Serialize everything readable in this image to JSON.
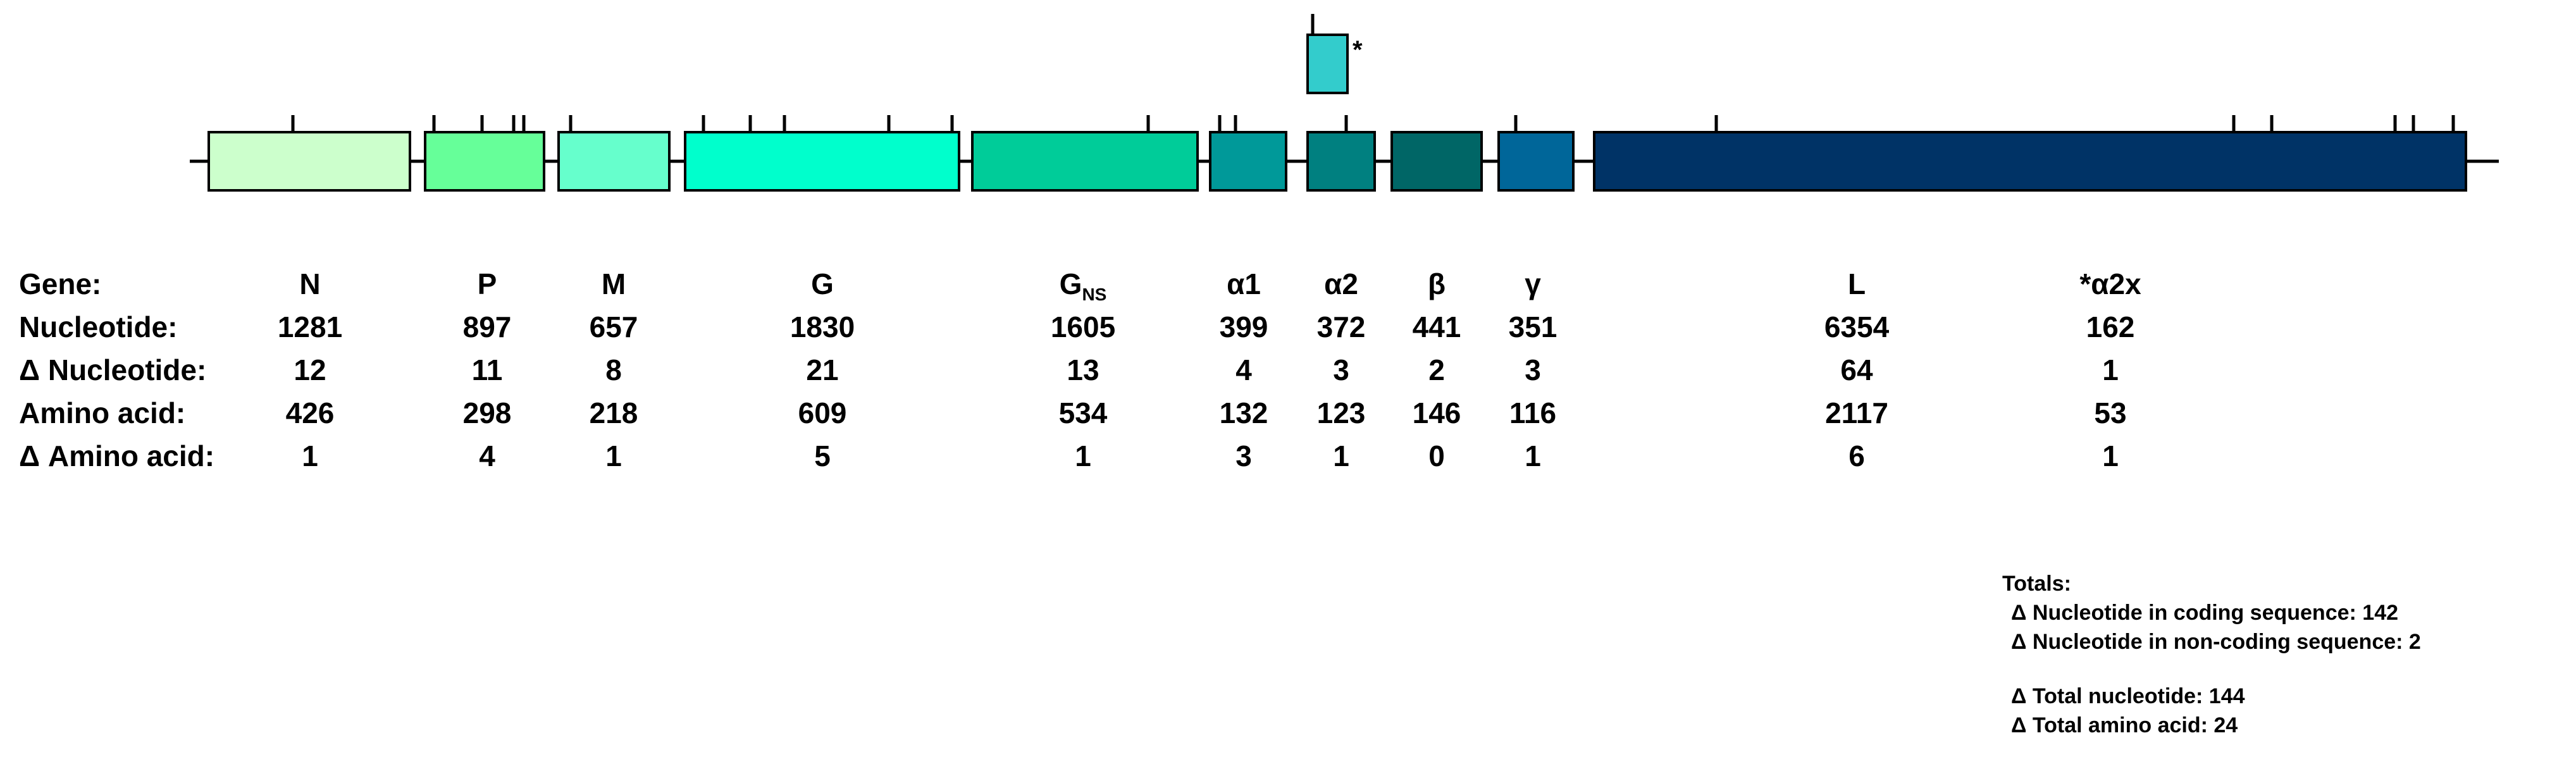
{
  "diagram": {
    "colors": {
      "N": "#ccffcc",
      "P": "#66ff99",
      "M": "#66ffcc",
      "G": "#00ffcc",
      "G_NS": "#00cc99",
      "alpha1": "#009999",
      "alpha2": "#008080",
      "beta": "#006666",
      "gamma": "#006699",
      "L": "#003366",
      "alpha2x": "#33cccc",
      "outline": "#000000"
    },
    "star_mark": "*"
  },
  "table": {
    "row_labels": [
      "Gene:",
      "Nucleotide:",
      "Δ Nucleotide:",
      "Amino acid:",
      "Δ Amino acid:"
    ],
    "genes": [
      {
        "gene": "N",
        "nucleotide": "1281",
        "d_nucleotide": "12",
        "amino_acid": "426",
        "d_amino_acid": "1"
      },
      {
        "gene": "P",
        "nucleotide": "897",
        "d_nucleotide": "11",
        "amino_acid": "298",
        "d_amino_acid": "4"
      },
      {
        "gene": "M",
        "nucleotide": "657",
        "d_nucleotide": "8",
        "amino_acid": "218",
        "d_amino_acid": "1"
      },
      {
        "gene": "G",
        "nucleotide": "1830",
        "d_nucleotide": "21",
        "amino_acid": "609",
        "d_amino_acid": "5"
      },
      {
        "gene": "G",
        "gene_sub": "NS",
        "nucleotide": "1605",
        "d_nucleotide": "13",
        "amino_acid": "534",
        "d_amino_acid": "1"
      },
      {
        "gene": "α1",
        "nucleotide": "399",
        "d_nucleotide": "4",
        "amino_acid": "132",
        "d_amino_acid": "3"
      },
      {
        "gene": "α2",
        "nucleotide": "372",
        "d_nucleotide": "3",
        "amino_acid": "123",
        "d_amino_acid": "1"
      },
      {
        "gene": "β",
        "nucleotide": "441",
        "d_nucleotide": "2",
        "amino_acid": "146",
        "d_amino_acid": "0"
      },
      {
        "gene": "γ",
        "nucleotide": "351",
        "d_nucleotide": "3",
        "amino_acid": "116",
        "d_amino_acid": "1"
      },
      {
        "gene": "L",
        "nucleotide": "6354",
        "d_nucleotide": "64",
        "amino_acid": "2117",
        "d_amino_acid": "6"
      },
      {
        "gene": "*α2x",
        "nucleotide": "162",
        "d_nucleotide": "1",
        "amino_acid": "53",
        "d_amino_acid": "1"
      }
    ]
  },
  "totals": {
    "heading": "Totals:",
    "coding": "Δ Nucleotide in coding sequence: 142",
    "noncoding": "Δ Nucleotide in non-coding sequence: 2",
    "total_nucleotide": "Δ Total nucleotide: 144",
    "total_amino_acid": "Δ Total amino acid: 24"
  }
}
